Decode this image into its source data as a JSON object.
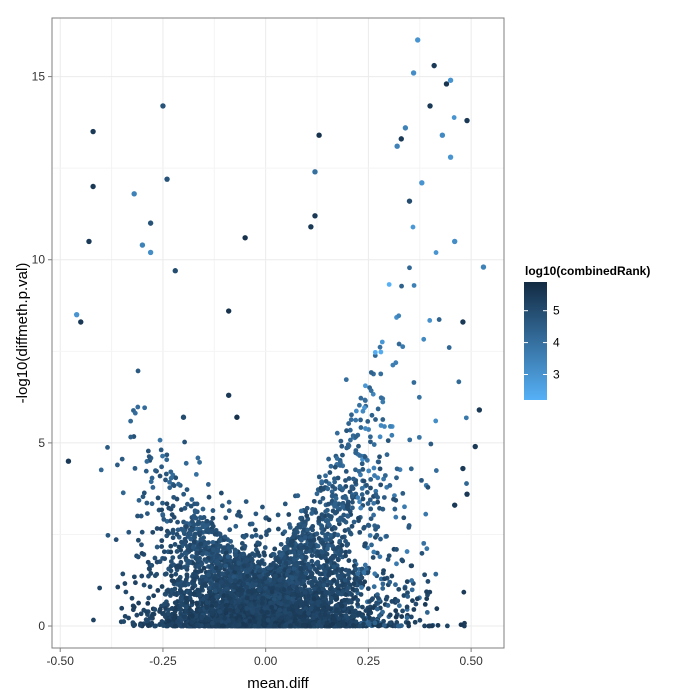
{
  "chart_data": {
    "type": "scatter",
    "title": "",
    "xlabel": "mean.diff",
    "ylabel": "-log10(diffmeth.p.val)",
    "xlim": [
      -0.52,
      0.58
    ],
    "ylim": [
      -0.6,
      16.6
    ],
    "x_ticks": [
      -0.5,
      -0.25,
      0.0,
      0.25,
      0.5
    ],
    "x_tick_labels": [
      "-0.50",
      "-0.25",
      "0.00",
      "0.25",
      "0.50"
    ],
    "y_ticks": [
      0,
      5,
      10,
      15
    ],
    "y_tick_labels": [
      "0",
      "5",
      "10",
      "15"
    ],
    "grid": true,
    "legend": {
      "title": "log10(combinedRank)",
      "placement": "right",
      "range": [
        2.2,
        5.9
      ],
      "breaks": [
        3,
        4,
        5
      ],
      "break_labels": [
        "3",
        "4",
        "5"
      ],
      "color_low": "#56B1F7",
      "color_high": "#132B43"
    },
    "points": [
      {
        "x": 0.37,
        "y": 16.0,
        "c": 3.0
      },
      {
        "x": 0.41,
        "y": 15.3,
        "c": 5.5
      },
      {
        "x": 0.36,
        "y": 15.1,
        "c": 3.2
      },
      {
        "x": 0.45,
        "y": 14.9,
        "c": 3.0
      },
      {
        "x": 0.44,
        "y": 14.8,
        "c": 5.6
      },
      {
        "x": -0.25,
        "y": 14.2,
        "c": 4.8
      },
      {
        "x": 0.4,
        "y": 14.2,
        "c": 5.5
      },
      {
        "x": 0.49,
        "y": 13.8,
        "c": 5.5
      },
      {
        "x": 0.34,
        "y": 13.6,
        "c": 3.5
      },
      {
        "x": 0.33,
        "y": 13.3,
        "c": 5.5
      },
      {
        "x": -0.42,
        "y": 13.5,
        "c": 5.5
      },
      {
        "x": 0.13,
        "y": 13.4,
        "c": 5.7
      },
      {
        "x": 0.43,
        "y": 13.4,
        "c": 3.3
      },
      {
        "x": 0.32,
        "y": 13.1,
        "c": 3.5
      },
      {
        "x": 0.45,
        "y": 12.8,
        "c": 3.0
      },
      {
        "x": 0.12,
        "y": 12.4,
        "c": 4.0
      },
      {
        "x": -0.24,
        "y": 12.2,
        "c": 4.8
      },
      {
        "x": -0.42,
        "y": 12.0,
        "c": 5.5
      },
      {
        "x": 0.38,
        "y": 12.1,
        "c": 3.0
      },
      {
        "x": -0.32,
        "y": 11.8,
        "c": 3.5
      },
      {
        "x": 0.35,
        "y": 11.6,
        "c": 5.0
      },
      {
        "x": 0.12,
        "y": 11.2,
        "c": 5.5
      },
      {
        "x": -0.28,
        "y": 11.0,
        "c": 4.8
      },
      {
        "x": 0.11,
        "y": 10.9,
        "c": 5.5
      },
      {
        "x": -0.05,
        "y": 10.6,
        "c": 5.7
      },
      {
        "x": -0.3,
        "y": 10.4,
        "c": 3.5
      },
      {
        "x": -0.28,
        "y": 10.2,
        "c": 3.2
      },
      {
        "x": -0.43,
        "y": 10.5,
        "c": 5.5
      },
      {
        "x": 0.46,
        "y": 10.5,
        "c": 3.2
      },
      {
        "x": 0.53,
        "y": 9.8,
        "c": 3.5
      },
      {
        "x": -0.22,
        "y": 9.7,
        "c": 5.0
      },
      {
        "x": -0.46,
        "y": 8.5,
        "c": 3.0
      },
      {
        "x": -0.45,
        "y": 8.3,
        "c": 5.5
      },
      {
        "x": -0.09,
        "y": 8.6,
        "c": 5.7
      },
      {
        "x": 0.48,
        "y": 8.3,
        "c": 5.5
      },
      {
        "x": -0.48,
        "y": 4.5,
        "c": 5.5
      },
      {
        "x": -0.09,
        "y": 6.3,
        "c": 5.5
      },
      {
        "x": -0.07,
        "y": 5.7,
        "c": 5.7
      },
      {
        "x": 0.52,
        "y": 5.9,
        "c": 5.5
      },
      {
        "x": 0.51,
        "y": 4.9,
        "c": 5.5
      },
      {
        "x": 0.49,
        "y": 3.6,
        "c": 5.5
      },
      {
        "x": 0.48,
        "y": 4.3,
        "c": 5.5
      },
      {
        "x": 0.46,
        "y": 3.3,
        "c": 5.5
      },
      {
        "x": -0.2,
        "y": 5.7,
        "c": 5.0
      }
    ]
  }
}
